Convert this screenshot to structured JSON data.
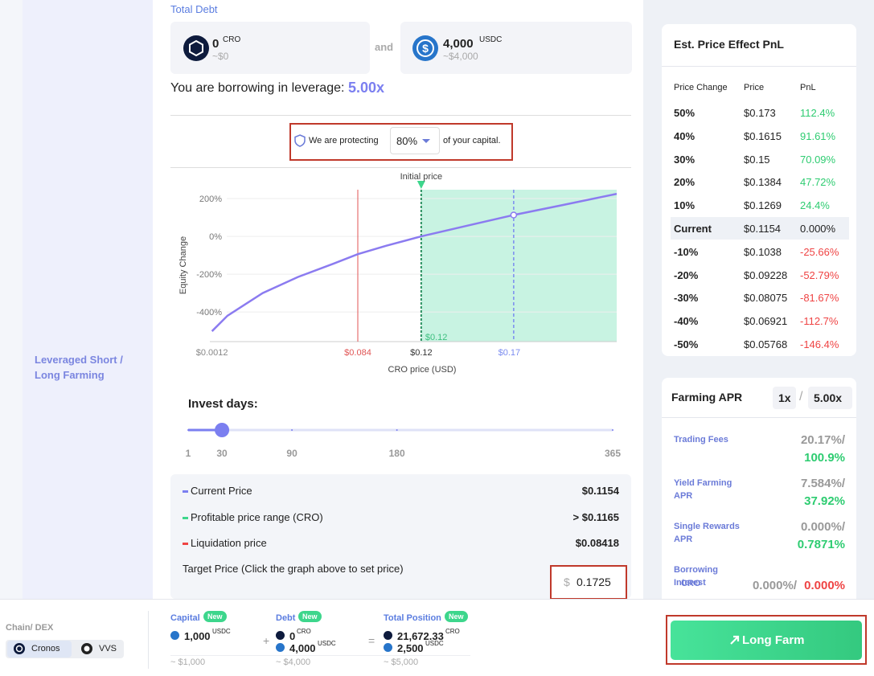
{
  "sidebar": {
    "label": "Leveraged Short / Long Farming"
  },
  "debt": {
    "title": "Total Debt",
    "connector": "and",
    "items": [
      {
        "amount": "0",
        "unit": "CRO",
        "usd": "~$0"
      },
      {
        "amount": "4,000",
        "unit": "USDC",
        "usd": "~$4,000"
      }
    ]
  },
  "leverage": {
    "label": "You are borrowing in leverage:",
    "value": "5.00x"
  },
  "protect": {
    "prefix": "We are protecting",
    "value": "80%",
    "suffix": "of your capital."
  },
  "chart_data": {
    "type": "line",
    "annotation": "Initial price",
    "x_label": "CRO price (USD)",
    "y_label": "Equity Change",
    "xlim": [
      0,
      0.231
    ],
    "ylim": [
      -557,
      247
    ],
    "yticks": [
      {
        "value": 200,
        "label": "200%"
      },
      {
        "value": 0,
        "label": "0%"
      },
      {
        "value": -200,
        "label": "-200%"
      },
      {
        "value": -400,
        "label": "-400%"
      }
    ],
    "xticks": [
      {
        "value": 0.0012,
        "label": "$0.0012",
        "color": "#888888"
      },
      {
        "value": 0.084,
        "label": "$0.084",
        "color": "#e05555"
      },
      {
        "value": 0.12,
        "label": "$0.12",
        "color": "#333333"
      },
      {
        "value": 0.17,
        "label": "$0.17",
        "color": "#7b8cf0"
      }
    ],
    "profit_label": "$0.12",
    "target": 0.1725,
    "grid": true,
    "x": [
      0.0012,
      0.01,
      0.03,
      0.05,
      0.07,
      0.084,
      0.1,
      0.12,
      0.15,
      0.1725,
      0.2,
      0.231
    ],
    "series": [
      {
        "color": "#8b7bf0",
        "values": [
          -502,
          -420,
          -300,
          -215,
          -145,
          -94,
          -50,
          0,
          65,
          113,
          165,
          225
        ]
      }
    ]
  },
  "invest": {
    "title": "Invest days:",
    "value": 30,
    "lim": [
      1,
      365
    ],
    "ticks": [
      1,
      30,
      90,
      180,
      365
    ]
  },
  "summary": {
    "rows": [
      {
        "label": "Current Price",
        "value": "$0.1154",
        "color": "#7b7ff0"
      },
      {
        "label": "Profitable price range (CRO)",
        "value": "> $0.1165",
        "color": "#3dd68c"
      },
      {
        "label": "Liquidation price",
        "value": "$0.08418",
        "color": "#ef4444"
      }
    ],
    "target_label": "Target Price (Click the graph above to set price)",
    "currency": "$",
    "target_value": "0.1725"
  },
  "pnl": {
    "title": "Est. Price Effect PnL",
    "headers": [
      "Price Change",
      "Price",
      "PnL"
    ],
    "rows": [
      {
        "change": "50%",
        "price": "$0.173",
        "pnl": "112.4%",
        "color": "#2ecc71"
      },
      {
        "change": "40%",
        "price": "$0.1615",
        "pnl": "91.61%",
        "color": "#2ecc71"
      },
      {
        "change": "30%",
        "price": "$0.15",
        "pnl": "70.09%",
        "color": "#2ecc71"
      },
      {
        "change": "20%",
        "price": "$0.1384",
        "pnl": "47.72%",
        "color": "#2ecc71"
      },
      {
        "change": "10%",
        "price": "$0.1269",
        "pnl": "24.4%",
        "color": "#2ecc71"
      },
      {
        "change": "Current",
        "price": "$0.1154",
        "pnl": "0.000%",
        "color": "#222222"
      },
      {
        "change": "-10%",
        "price": "$0.1038",
        "pnl": "-25.66%",
        "color": "#ef4444"
      },
      {
        "change": "-20%",
        "price": "$0.09228",
        "pnl": "-52.79%",
        "color": "#ef4444"
      },
      {
        "change": "-30%",
        "price": "$0.08075",
        "pnl": "-81.67%",
        "color": "#ef4444"
      },
      {
        "change": "-40%",
        "price": "$0.06921",
        "pnl": "-112.7%",
        "color": "#ef4444"
      },
      {
        "change": "-50%",
        "price": "$0.05768",
        "pnl": "-146.4%",
        "color": "#ef4444"
      }
    ]
  },
  "apr": {
    "title": "Farming APR",
    "options": [
      "1x",
      "5.00x"
    ],
    "separator": "/",
    "rows": [
      {
        "label": "Trading Fees",
        "base": "20.17%/",
        "lev": "100.9%",
        "color": "#2ecc71"
      },
      {
        "label": "Yield Farming APR",
        "base": "7.584%/",
        "lev": "37.92%",
        "color": "#2ecc71"
      },
      {
        "label": "Single Rewards APR",
        "base": "0.000%/",
        "lev": "0.7871%",
        "color": "#2ecc71"
      },
      {
        "label": "Borrowing Interest",
        "sub": "CRO",
        "base": "0.000%/",
        "lev": "0.000%",
        "color": "#ef4444"
      }
    ]
  },
  "bottom": {
    "chain_label": "Chain/ DEX",
    "chips": [
      "Cronos",
      "VVS"
    ],
    "badge": "New",
    "capital": {
      "title": "Capital",
      "lines": [
        {
          "amount": "1,000",
          "unit": "USDC"
        }
      ],
      "usd": "~ $1,000"
    },
    "plus": "+",
    "debt": {
      "title": "Debt",
      "lines": [
        {
          "amount": "0",
          "unit": "CRO"
        },
        {
          "amount": "4,000",
          "unit": "USDC"
        }
      ],
      "usd": "~ $4,000"
    },
    "equals": "=",
    "total": {
      "title": "Total Position",
      "lines": [
        {
          "amount": "21,672.33",
          "unit": "CRO"
        },
        {
          "amount": "2,500",
          "unit": "USDC"
        }
      ],
      "usd": "~ $5,000"
    },
    "button": "Long Farm"
  }
}
